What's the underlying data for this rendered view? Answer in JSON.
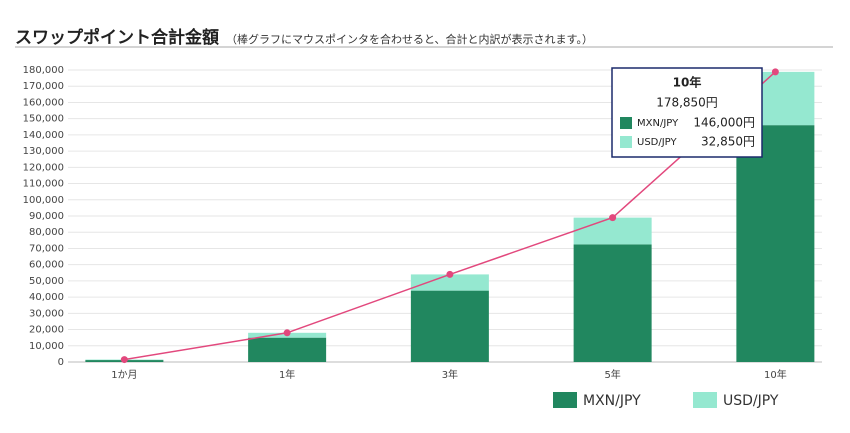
{
  "chart_data": {
    "type": "stacked-bar-line",
    "title": "スワップポイント合計金額",
    "subtitle": "（棒グラフにマウスポインタを合わせると、合計と内訳が表示されます。）",
    "categories": [
      "1か月",
      "1年",
      "3年",
      "5年",
      "10年"
    ],
    "series": [
      {
        "name": "MXN/JPY",
        "color": "#21875f",
        "values": [
          1200,
          15000,
          44000,
          72500,
          146000
        ]
      },
      {
        "name": "USD/JPY",
        "color": "#95e8d0",
        "values": [
          300,
          3000,
          10000,
          16500,
          32850
        ]
      }
    ],
    "total": {
      "color": "#e2487d",
      "values": [
        1500,
        18000,
        54000,
        89000,
        178850
      ]
    },
    "ylim": [
      0,
      180000
    ],
    "yticks": [
      0,
      {
        "value": 10000,
        "label": "10,000"
      },
      {
        "value": 20000,
        "label": "20,000"
      },
      {
        "value": 30000,
        "label": "30,000"
      },
      {
        "value": 40000,
        "label": "40,000"
      },
      {
        "value": 50000,
        "label": "50,000"
      },
      {
        "value": 60000,
        "label": "60,000"
      },
      {
        "value": 70000,
        "label": "70,000"
      },
      {
        "value": 80000,
        "label": "80,000"
      },
      {
        "value": 90000,
        "label": "90,000"
      },
      {
        "value": 100000,
        "label": "100,000"
      },
      {
        "value": 110000,
        "label": "110,000"
      },
      {
        "value": 120000,
        "label": "120,000"
      },
      {
        "value": 130000,
        "label": "130,000"
      },
      {
        "value": 140000,
        "label": "140,000"
      },
      {
        "value": 150000,
        "label": "150,000"
      },
      {
        "value": 160000,
        "label": "160,000"
      },
      {
        "value": 170000,
        "label": "170,000"
      },
      {
        "value": 180000,
        "label": "180,000"
      }
    ],
    "grid": true,
    "tooltip": {
      "title": "10年",
      "total": "178,850円",
      "items": [
        {
          "name": "MXN/JPY",
          "value": "146,000円"
        },
        {
          "name": "USD/JPY",
          "value": "32,850円"
        }
      ]
    }
  }
}
